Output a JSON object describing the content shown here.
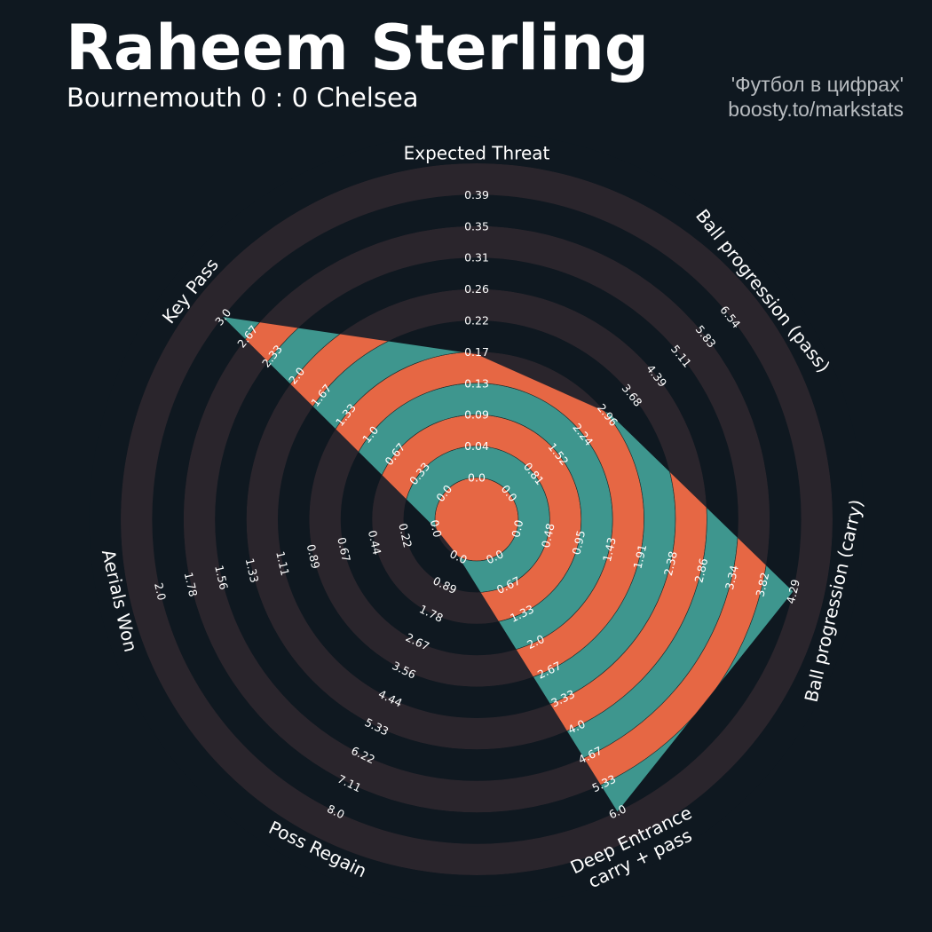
{
  "header": {
    "title": "Raheem Sterling",
    "subtitle": "Bournemouth 0 : 0 Chelsea"
  },
  "credit": {
    "line1": "'Футбол в цифрах'",
    "line2": "boosty.to/markstats"
  },
  "colors": {
    "background": "#0f1820",
    "rings": "#2a252c",
    "fill_teal": "#3e968e",
    "fill_orange": "#e66744",
    "text": "#ffffff"
  },
  "chart_data": {
    "type": "radar",
    "title": "Raheem Sterling",
    "subtitle": "Bournemouth 0 : 0 Chelsea",
    "parameters": [
      {
        "label": "Expected Threat",
        "range": [
          0.0,
          0.39
        ],
        "ticks": [
          "0.0",
          "0.04",
          "0.09",
          "0.13",
          "0.17",
          "0.22",
          "0.26",
          "0.31",
          "0.35",
          "0.39"
        ],
        "value": 0.17
      },
      {
        "label": "Ball progression (pass)",
        "range": [
          0.0,
          6.54
        ],
        "ticks": [
          "0.0",
          "0.81",
          "1.52",
          "2.24",
          "2.96",
          "3.68",
          "4.39",
          "5.11",
          "5.83",
          "6.54"
        ],
        "value": 2.96
      },
      {
        "label": "Ball progression (carry)",
        "range": [
          0.0,
          4.29
        ],
        "ticks": [
          "0.0",
          "0.48",
          "0.95",
          "1.43",
          "1.91",
          "2.38",
          "2.86",
          "3.34",
          "3.82",
          "4.29"
        ],
        "value": 4.29
      },
      {
        "label": "Deep Entrance\ncarry + pass",
        "range": [
          0.0,
          6.0
        ],
        "ticks": [
          "0.0",
          "0.67",
          "1.33",
          "2.0",
          "2.67",
          "3.33",
          "4.0",
          "4.67",
          "5.33",
          "6.0"
        ],
        "value": 6.0
      },
      {
        "label": "Poss Regain",
        "range": [
          0.0,
          8.0
        ],
        "ticks": [
          "0.0",
          "0.89",
          "1.78",
          "2.67",
          "3.56",
          "4.44",
          "5.33",
          "6.22",
          "7.11",
          "8.0"
        ],
        "value": 0.0
      },
      {
        "label": "Aerials Won",
        "range": [
          0.0,
          2.0
        ],
        "ticks": [
          "0.0",
          "0.22",
          "0.44",
          "0.67",
          "0.89",
          "1.11",
          "1.33",
          "1.56",
          "1.78",
          "2.0"
        ],
        "value": 0.0
      },
      {
        "label": "Key Pass",
        "range": [
          0.0,
          3.0
        ],
        "ticks": [
          "0.0",
          "0.33",
          "0.67",
          "1.0",
          "1.33",
          "1.67",
          "2.0",
          "2.33",
          "2.67",
          "3.0"
        ],
        "value": 3.0
      }
    ]
  }
}
